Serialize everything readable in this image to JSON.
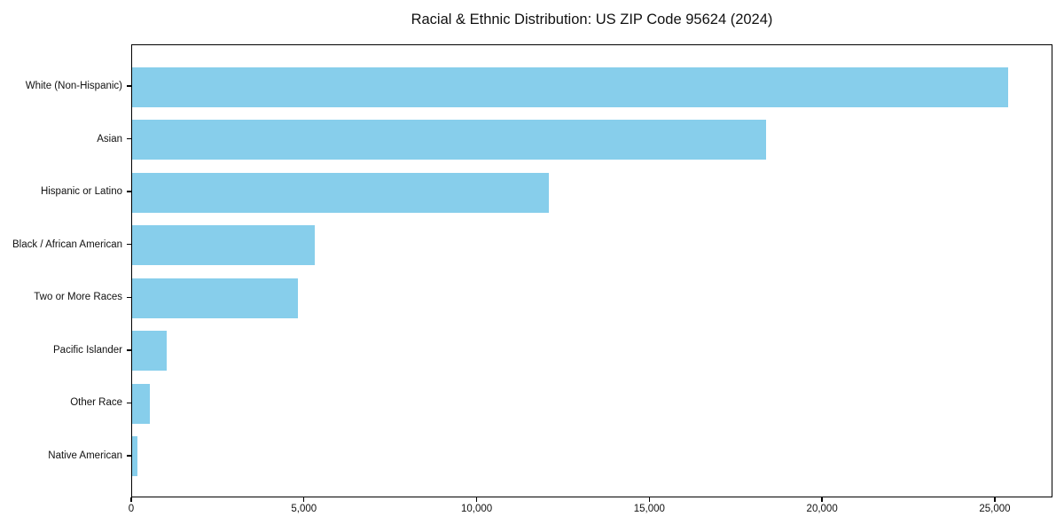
{
  "title": "Racial & Ethnic Distribution: US ZIP Code 95624 (2024)",
  "chart_data": {
    "type": "bar",
    "orientation": "horizontal",
    "title": "Racial & Ethnic Distribution: US ZIP Code 95624 (2024)",
    "categories": [
      "White (Non-Hispanic)",
      "Asian",
      "Hispanic or Latino",
      "Black / African American",
      "Two or More Races",
      "Pacific Islander",
      "Other Race",
      "Native American"
    ],
    "values": [
      25400,
      18400,
      12100,
      5300,
      4800,
      1000,
      520,
      150
    ],
    "bar_color": "#87CEEB",
    "xlabel": "",
    "ylabel": "",
    "xlim": [
      0,
      26670
    ],
    "x_ticks": [
      0,
      5000,
      10000,
      15000,
      20000,
      25000
    ],
    "x_tick_labels": [
      "0",
      "5,000",
      "10,000",
      "15,000",
      "20,000",
      "25,000"
    ],
    "grid": false,
    "legend": null,
    "plot_border": "#000000",
    "background": "#ffffff"
  }
}
